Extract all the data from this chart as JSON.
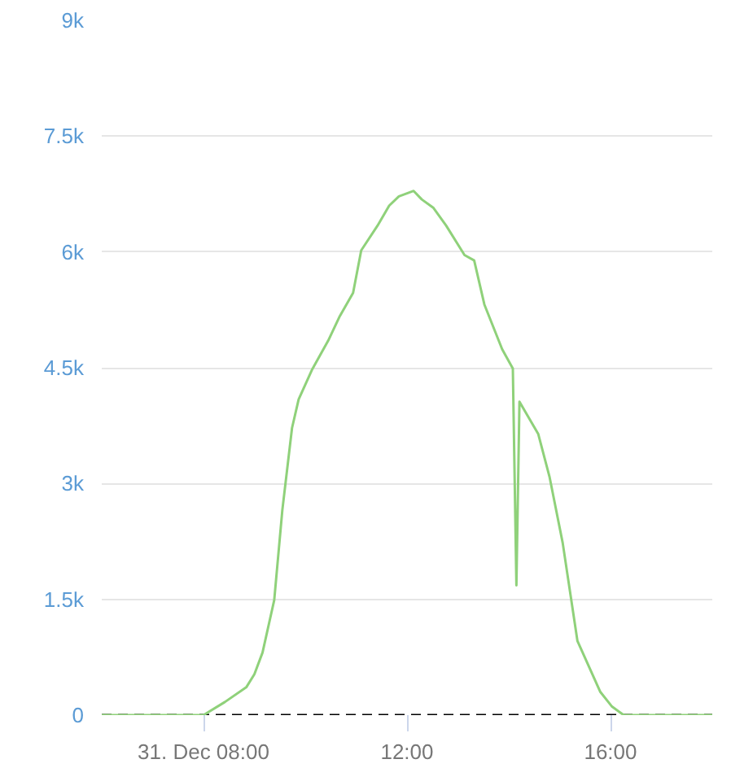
{
  "chart_data": {
    "type": "line",
    "x": [
      6.0,
      8.0,
      8.42,
      8.84,
      9.0,
      9.16,
      9.39,
      9.55,
      9.74,
      9.87,
      10.13,
      10.45,
      10.68,
      10.94,
      11.1,
      11.42,
      11.65,
      11.84,
      12.13,
      12.29,
      12.52,
      12.77,
      13.13,
      13.32,
      13.52,
      13.87,
      14.08,
      14.15,
      14.21,
      14.58,
      14.8,
      15.06,
      15.35,
      15.8,
      16.03,
      16.26,
      18.0
    ],
    "series": [
      {
        "color": "#8fd17a",
        "values": [
          0,
          0,
          170,
          360,
          530,
          810,
          1490,
          2660,
          3720,
          4090,
          4470,
          4850,
          5170,
          5470,
          6020,
          6340,
          6600,
          6720,
          6790,
          6680,
          6570,
          6340,
          5960,
          5890,
          5320,
          4740,
          4490,
          1680,
          4060,
          3640,
          3090,
          2230,
          960,
          300,
          110,
          0,
          0
        ]
      }
    ],
    "xlim": [
      6,
      18
    ],
    "xticks": [
      {
        "value": 8,
        "label": "31. Dec 08:00"
      },
      {
        "value": 12,
        "label": "12:00"
      },
      {
        "value": 16,
        "label": "16:00"
      }
    ],
    "ylim": [
      0,
      9000
    ],
    "yticks": [
      {
        "value": 0,
        "label": "0"
      },
      {
        "value": 1500,
        "label": "1.5k"
      },
      {
        "value": 3000,
        "label": "3k"
      },
      {
        "value": 4500,
        "label": "4.5k"
      },
      {
        "value": 6000,
        "label": "6k"
      },
      {
        "value": 7500,
        "label": "7.5k"
      },
      {
        "value": 9000,
        "label": "9k"
      }
    ],
    "grid": "y",
    "marker": "none",
    "line_style": "solid",
    "ref_lines": [
      {
        "axis": "y",
        "value": 0,
        "color": "#000000",
        "line_style": "dashed"
      }
    ]
  }
}
